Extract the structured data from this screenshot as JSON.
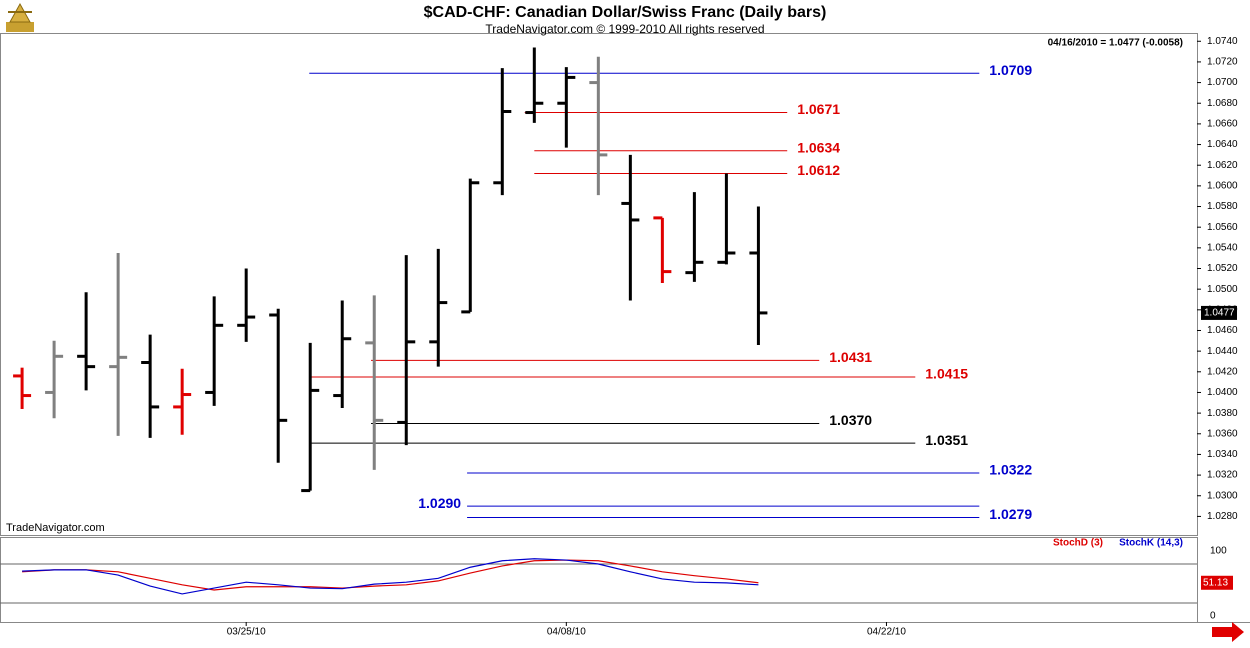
{
  "chart_data": [
    {
      "type": "ohlc",
      "title": "$CAD-CHF:  Canadian Dollar/Swiss Franc  (Daily bars)",
      "subtitle": "TradeNavigator.com © 1999-2010 All rights reserved",
      "info": "04/16/2010 = 1.0477 (-0.0058)",
      "watermark": "TradeNavigator.com",
      "xlim": [
        -0.69,
        36.7
      ],
      "ylim": [
        1.0262,
        1.0748
      ],
      "yticks": [
        {
          "value": 1.028,
          "label": "1.0280"
        },
        {
          "value": 1.03,
          "label": "1.0300"
        },
        {
          "value": 1.032,
          "label": "1.0320"
        },
        {
          "value": 1.034,
          "label": "1.0340"
        },
        {
          "value": 1.036,
          "label": "1.0360"
        },
        {
          "value": 1.038,
          "label": "1.0380"
        },
        {
          "value": 1.04,
          "label": "1.0400"
        },
        {
          "value": 1.042,
          "label": "1.0420"
        },
        {
          "value": 1.044,
          "label": "1.0440"
        },
        {
          "value": 1.046,
          "label": "1.0460"
        },
        {
          "value": 1.048,
          "label": "1.0480"
        },
        {
          "value": 1.05,
          "label": "1.0500"
        },
        {
          "value": 1.052,
          "label": "1.0520"
        },
        {
          "value": 1.054,
          "label": "1.0540"
        },
        {
          "value": 1.056,
          "label": "1.0560"
        },
        {
          "value": 1.058,
          "label": "1.0580"
        },
        {
          "value": 1.06,
          "label": "1.0600"
        },
        {
          "value": 1.062,
          "label": "1.0620"
        },
        {
          "value": 1.064,
          "label": "1.0640"
        },
        {
          "value": 1.066,
          "label": "1.0660"
        },
        {
          "value": 1.068,
          "label": "1.0680"
        },
        {
          "value": 1.07,
          "label": "1.0700"
        },
        {
          "value": 1.072,
          "label": "1.0720"
        },
        {
          "value": 1.074,
          "label": "1.0740"
        }
      ],
      "open": [
        1.0416,
        1.04,
        1.0435,
        1.0425,
        1.0429,
        1.0386,
        1.04,
        1.0465,
        1.0475,
        1.0305,
        1.0397,
        1.0448,
        1.0371,
        1.0449,
        1.0478,
        1.0603,
        1.0671,
        1.068,
        1.07,
        1.0583,
        1.0569,
        1.0516,
        1.0526,
        1.0535
      ],
      "high": [
        1.0424,
        1.045,
        1.0497,
        1.0535,
        1.0456,
        1.0423,
        1.0493,
        1.052,
        1.0481,
        1.0448,
        1.0489,
        1.0494,
        1.0533,
        1.0539,
        1.0607,
        1.0714,
        1.0734,
        1.0715,
        1.0725,
        1.063,
        1.0569,
        1.0594,
        1.0612,
        1.058
      ],
      "low": [
        1.0384,
        1.0375,
        1.0402,
        1.0358,
        1.0356,
        1.0359,
        1.0387,
        1.0449,
        1.0332,
        1.0305,
        1.0385,
        1.0325,
        1.0349,
        1.0425,
        1.0478,
        1.0591,
        1.0661,
        1.0637,
        1.0591,
        1.0489,
        1.0506,
        1.0507,
        1.0524,
        1.0446
      ],
      "close": [
        1.0397,
        1.0435,
        1.0425,
        1.0434,
        1.0386,
        1.0398,
        1.0465,
        1.0473,
        1.0373,
        1.0402,
        1.0452,
        1.0373,
        1.0449,
        1.0487,
        1.0603,
        1.0672,
        1.068,
        1.0705,
        1.063,
        1.0567,
        1.0517,
        1.0526,
        1.0535,
        1.0477
      ],
      "colors": [
        "#e00000",
        "#808080",
        "#000000",
        "#808080",
        "#000000",
        "#e00000",
        "#000000",
        "#000000",
        "#000000",
        "#000000",
        "#000000",
        "#808080",
        "#000000",
        "#000000",
        "#000000",
        "#000000",
        "#000000",
        "#000000",
        "#808080",
        "#000000",
        "#e00000",
        "#000000",
        "#000000",
        "#000000"
      ],
      "levels": [
        {
          "value": 1.0709,
          "label": "1.0709",
          "color": "#0000cc",
          "start": 8.97,
          "end": 29.9,
          "side": "right"
        },
        {
          "value": 1.0671,
          "label": "1.0671",
          "color": "#dd0000",
          "start": 15.7,
          "end": 23.9,
          "side": "right"
        },
        {
          "value": 1.0634,
          "label": "1.0634",
          "color": "#dd0000",
          "start": 16,
          "end": 23.9,
          "side": "right"
        },
        {
          "value": 1.0612,
          "label": "1.0612",
          "color": "#dd0000",
          "start": 16,
          "end": 23.9,
          "side": "right"
        },
        {
          "value": 1.0431,
          "label": "1.0431",
          "color": "#dd0000",
          "start": 10.9,
          "end": 24.9,
          "side": "right"
        },
        {
          "value": 1.0415,
          "label": "1.0415",
          "color": "#dd0000",
          "start": 8.97,
          "end": 27.9,
          "side": "right"
        },
        {
          "value": 1.037,
          "label": "1.0370",
          "color": "#000000",
          "start": 10.9,
          "end": 24.9,
          "side": "right"
        },
        {
          "value": 1.0351,
          "label": "1.0351",
          "color": "#000000",
          "start": 8.97,
          "end": 27.9,
          "side": "right"
        },
        {
          "value": 1.0322,
          "label": "1.0322",
          "color": "#0000cc",
          "start": 13.9,
          "end": 29.9,
          "side": "right"
        },
        {
          "value": 1.029,
          "label": "1.0290",
          "color": "#0000cc",
          "start": 13.9,
          "end": 29.9,
          "side": "left"
        },
        {
          "value": 1.0279,
          "label": "1.0279",
          "color": "#0000cc",
          "start": 13.9,
          "end": 29.9,
          "side": "right"
        }
      ]
    },
    {
      "type": "line",
      "xlim": [
        -0.69,
        36.7
      ],
      "ylim": [
        -9.2,
        121.5
      ],
      "yticks": [
        0,
        100
      ],
      "guides": [
        20,
        80
      ],
      "xticks": [
        {
          "value": 7,
          "label": "03/25/10"
        },
        {
          "value": 17,
          "label": "04/08/10"
        },
        {
          "value": 27,
          "label": "04/22/10"
        }
      ],
      "series": [
        {
          "name": "StochD (3)",
          "color": "#dd0000",
          "values": [
            68,
            71,
            71,
            68,
            58,
            48,
            40,
            45,
            45,
            45,
            43,
            46,
            48,
            54,
            66,
            77,
            85,
            86,
            85,
            77,
            68,
            62,
            57,
            51.13
          ]
        },
        {
          "name": "StochK (14,3)",
          "color": "#0000cc",
          "values": [
            69,
            71,
            71,
            63,
            46,
            34,
            43,
            52,
            48,
            43,
            42,
            49,
            52,
            58,
            75,
            85,
            88,
            86,
            80,
            68,
            57,
            52,
            51,
            48
          ]
        }
      ]
    }
  ]
}
